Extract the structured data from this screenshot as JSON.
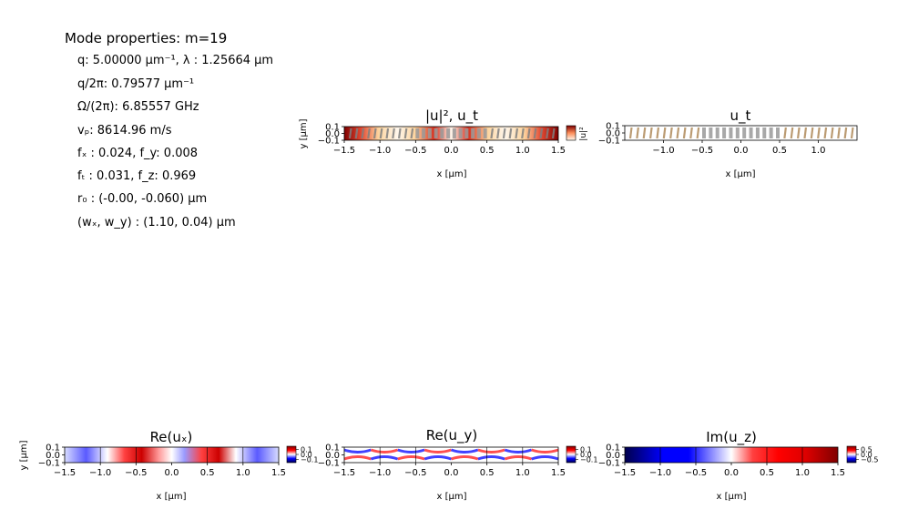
{
  "mode_properties": {
    "title": "Mode properties: m=19",
    "lines": [
      "q: 5.00000 μm⁻¹, λ :  1.25664 μm",
      "q/2π: 0.79577 μm⁻¹",
      "Ω/(2π): 6.85557 GHz",
      "vₚ: 8614.96 m/s",
      "fₓ :  0.024, f_y: 0.008",
      "fₜ :  0.031, f_z: 0.969",
      "r₀ :  (-0.00, -0.060) μm",
      "(wₓ, w_y) :  (1.10, 0.04) μm"
    ]
  },
  "colors": {
    "frame": "#000000",
    "heat_low": "#fff5e6",
    "heat_high": "#8b0000",
    "seis_neg": "#00004c",
    "seis_zero": "#ffffff",
    "seis_pos": "#800000",
    "arrow_t": "#808080",
    "arrow_u": "#b08a5a"
  },
  "chart_data": [
    {
      "type": "heatmap",
      "title": "|u|², u_t",
      "xlabel": "x [μm]",
      "ylabel": "y [μm]",
      "xlim": [
        -1.5,
        1.5
      ],
      "ylim": [
        -0.1,
        0.1
      ],
      "x_ticks": [
        "−1.5",
        "−1.0",
        "−0.5",
        "0.0",
        "0.5",
        "1.0",
        "1.5"
      ],
      "y_ticks": [
        "0.1",
        "0.0",
        "−0.1"
      ],
      "colormap": "OrRd",
      "colorbar": true,
      "colorbar_label": "|u|²",
      "overlay": "transverse displacement arrows"
    },
    {
      "type": "heatmap",
      "title": "u_t",
      "xlabel": "x [μm]",
      "ylabel": "",
      "xlim": [
        -1.5,
        1.5
      ],
      "ylim": [
        -0.1,
        0.1
      ],
      "x_ticks": [
        "−1.0",
        "−0.5",
        "0.0",
        "0.5",
        "1.0"
      ],
      "y_ticks": [
        "0.1",
        "0.0",
        "−0.1"
      ],
      "overlay": "transverse displacement arrows"
    },
    {
      "type": "heatmap",
      "title": "Re(uₓ)",
      "xlabel": "x [μm]",
      "ylabel": "y [μm]",
      "xlim": [
        -1.5,
        1.5
      ],
      "ylim": [
        -0.1,
        0.1
      ],
      "x_ticks": [
        "−1.5",
        "−1.0",
        "−0.5",
        "0.0",
        "0.5",
        "1.0",
        "1.5"
      ],
      "y_ticks": [
        "0.1",
        "0.0",
        "−0.1"
      ],
      "colormap": "seismic",
      "colorbar_ticks": [
        "0.1",
        "0.0",
        "−0.1"
      ]
    },
    {
      "type": "heatmap",
      "title": "Re(u_y)",
      "xlabel": "x [μm]",
      "ylabel": "",
      "xlim": [
        -1.5,
        1.5
      ],
      "ylim": [
        -0.1,
        0.1
      ],
      "x_ticks": [
        "−1.5",
        "−1.0",
        "−0.5",
        "0.0",
        "0.5",
        "1.0",
        "1.5"
      ],
      "y_ticks": [
        "0.1",
        "0.0",
        "−0.1"
      ],
      "colormap": "seismic",
      "colorbar_ticks": [
        "0.1",
        "0.0",
        "−0.1"
      ]
    },
    {
      "type": "heatmap",
      "title": "Im(u_z)",
      "xlabel": "x [μm]",
      "ylabel": "",
      "xlim": [
        -1.5,
        1.5
      ],
      "ylim": [
        -0.1,
        0.1
      ],
      "x_ticks": [
        "−1.5",
        "−1.0",
        "−0.5",
        "0.0",
        "0.5",
        "1.0",
        "1.5"
      ],
      "y_ticks": [
        "0.1",
        "0.0",
        "−0.1"
      ],
      "colormap": "seismic",
      "colorbar_ticks": [
        "0.5",
        "0.0",
        "−0.5"
      ]
    }
  ]
}
